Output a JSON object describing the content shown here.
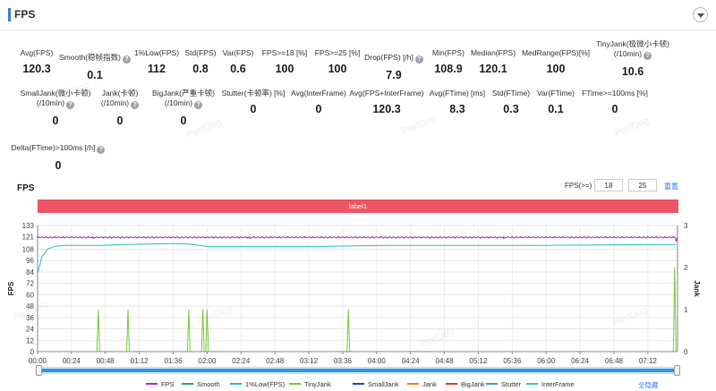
{
  "header": {
    "title": "FPS"
  },
  "stats": [
    {
      "label": "Avg(FPS)",
      "value": "120.3",
      "help": false
    },
    {
      "label": "Smooth(稳帧指数)",
      "value": "0.1",
      "help": true
    },
    {
      "label": "1%Low(FPS)",
      "value": "112",
      "help": false
    },
    {
      "label": "Std(FPS)",
      "value": "0.8",
      "help": false
    },
    {
      "label": "Var(FPS)",
      "value": "0.6",
      "help": false
    },
    {
      "label": "FPS>=18 [%]",
      "value": "100",
      "help": false
    },
    {
      "label": "FPS>=25 [%]",
      "value": "100",
      "help": false
    },
    {
      "label": "Drop(FPS) [/h]",
      "value": "7.9",
      "help": true
    },
    {
      "label": "Min(FPS)",
      "value": "108.9",
      "help": false
    },
    {
      "label": "Median(FPS)",
      "value": "120.1",
      "help": false
    },
    {
      "label": "MedRange(FPS)[%]",
      "value": "100",
      "help": false
    },
    {
      "label": "TinyJank(极微小卡顿)",
      "label2": "(/10min)",
      "value": "10.6",
      "help": true
    },
    {
      "label": "SmallJank(微小卡顿)",
      "label2": "(/10min)",
      "value": "0",
      "help": true
    },
    {
      "label": "Jank(卡顿)",
      "label2": "(/10min)",
      "value": "0",
      "help": true
    },
    {
      "label": "BigJank(严重卡顿)",
      "label2": "(/10min)",
      "value": "0",
      "help": true
    },
    {
      "label": "Stutter(卡顿率) [%]",
      "value": "0",
      "help": false
    },
    {
      "label": "Avg(InterFrame)",
      "value": "0",
      "help": false
    },
    {
      "label": "Avg(FPS+InterFrame)",
      "value": "120.3",
      "help": false
    },
    {
      "label": "Avg(FTime) [ms]",
      "value": "8.3",
      "help": false
    },
    {
      "label": "Std(FTime)",
      "value": "0.3",
      "help": false
    },
    {
      "label": "Var(FTime)",
      "value": "0.1",
      "help": false
    },
    {
      "label": "FTime>=100ms [%]",
      "value": "0",
      "help": false
    },
    {
      "label": "Delta(FTime)>100ms [/h]",
      "value": "0",
      "help": true
    }
  ],
  "chart_section": {
    "title": "FPS",
    "threshold_label": "FPS(>=)",
    "threshold_values": [
      "18",
      "25"
    ],
    "reset_label": "重置",
    "band_label": "label1",
    "toggle_all_label": "全隐藏",
    "watermark": "PerfDog"
  },
  "chart_data": {
    "type": "line",
    "ylabel": "FPS",
    "y2label": "Jank",
    "ylim": [
      0,
      133
    ],
    "yticks": [
      0,
      12,
      24,
      36,
      48,
      60,
      72,
      84,
      96,
      108,
      121,
      133
    ],
    "y2lim": [
      0,
      3
    ],
    "y2ticks": [
      0,
      1,
      2,
      3
    ],
    "xlim_seconds": [
      0,
      453
    ],
    "xticks": [
      "00:00",
      "00:24",
      "00:48",
      "01:12",
      "01:36",
      "02:00",
      "02:24",
      "02:48",
      "03:12",
      "03:36",
      "04:00",
      "04:24",
      "04:48",
      "05:12",
      "05:36",
      "06:00",
      "06:24",
      "06:48",
      "07:12"
    ],
    "grid": true,
    "legend_position": "bottom",
    "series": [
      {
        "name": "FPS",
        "color": "#b22fb5",
        "axis": "left",
        "baseline": 120.3,
        "points": [
          [
            0,
            121
          ],
          [
            453,
            121
          ]
        ],
        "dips": [
          [
            39,
            119.6
          ],
          [
            150,
            119.5
          ],
          [
            245,
            119.6
          ],
          [
            330,
            119.7
          ],
          [
            452,
            116
          ]
        ]
      },
      {
        "name": "Smooth",
        "color": "#2ea866",
        "axis": "left",
        "points": []
      },
      {
        "name": "1%Low(FPS)",
        "color": "#2ebbbd",
        "axis": "left",
        "points": [
          [
            0,
            82
          ],
          [
            3,
            100
          ],
          [
            7,
            108
          ],
          [
            12,
            111
          ],
          [
            20,
            112
          ],
          [
            45,
            112
          ],
          [
            60,
            113
          ],
          [
            100,
            114
          ],
          [
            110,
            113
          ],
          [
            120,
            111
          ],
          [
            150,
            111
          ],
          [
            200,
            111
          ],
          [
            250,
            112
          ],
          [
            300,
            112
          ],
          [
            350,
            112
          ],
          [
            400,
            112.5
          ],
          [
            452,
            113
          ]
        ]
      },
      {
        "name": "TinyJank",
        "color": "#7cc43f",
        "axis": "right",
        "spikes": [
          [
            43,
            1
          ],
          [
            64,
            1
          ],
          [
            107,
            1
          ],
          [
            117,
            1
          ],
          [
            120,
            1
          ],
          [
            220,
            1
          ],
          [
            451,
            2
          ]
        ]
      },
      {
        "name": "SmallJank",
        "color": "#3040c0",
        "axis": "right",
        "points": []
      },
      {
        "name": "Jank",
        "color": "#f07d2b",
        "axis": "right",
        "points": []
      },
      {
        "name": "BigJank",
        "color": "#d83a3a",
        "axis": "right",
        "points": []
      },
      {
        "name": "Stutter",
        "color": "#4a90e2",
        "axis": "right",
        "points": []
      },
      {
        "name": "InterFrame",
        "color": "#35c7e5",
        "axis": "right",
        "points": []
      }
    ]
  }
}
